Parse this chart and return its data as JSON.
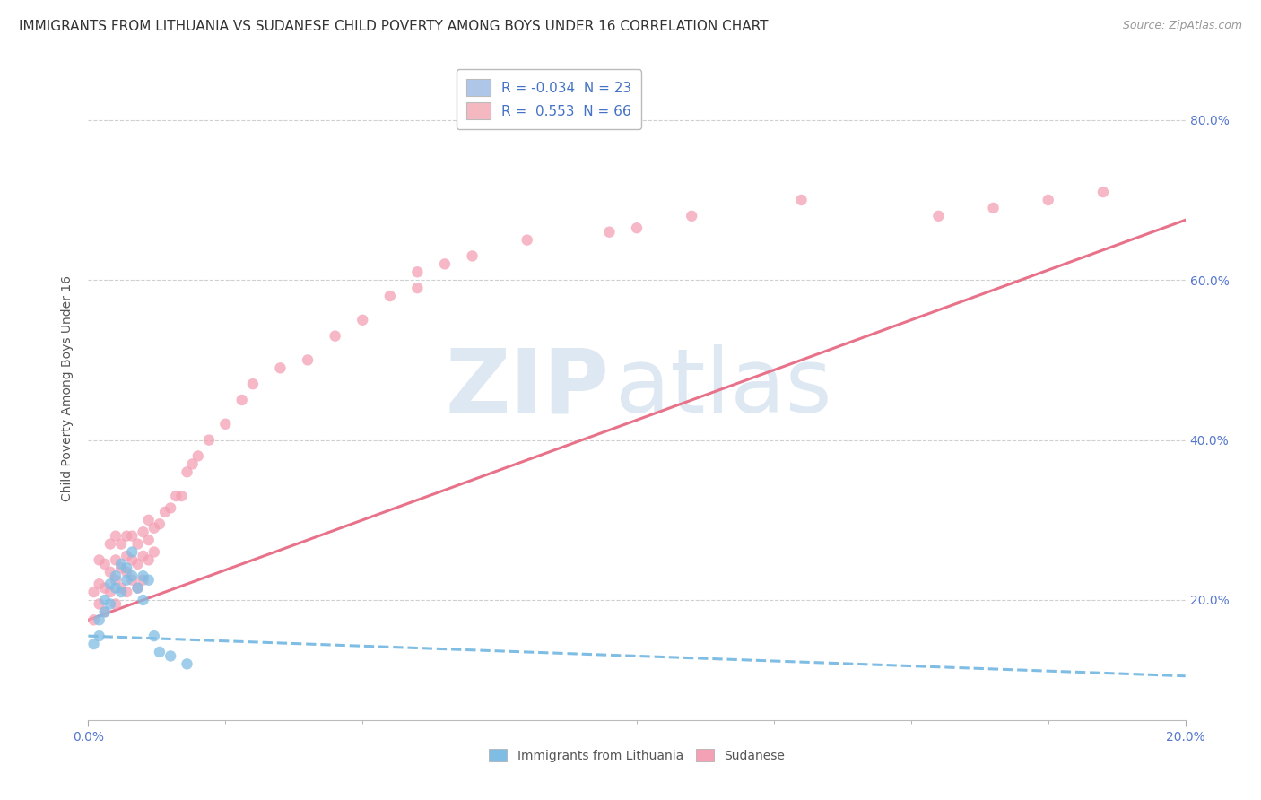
{
  "title": "IMMIGRANTS FROM LITHUANIA VS SUDANESE CHILD POVERTY AMONG BOYS UNDER 16 CORRELATION CHART",
  "source": "Source: ZipAtlas.com",
  "ylabel": "Child Poverty Among Boys Under 16",
  "xlim": [
    0.0,
    0.2
  ],
  "ylim": [
    0.05,
    0.88
  ],
  "legend_items": [
    {
      "label": "R = -0.034  N = 23",
      "color": "#aec6e8"
    },
    {
      "label": "R =  0.553  N = 66",
      "color": "#f4b8c1"
    }
  ],
  "blue_scatter_x": [
    0.001,
    0.002,
    0.002,
    0.003,
    0.003,
    0.004,
    0.004,
    0.005,
    0.005,
    0.006,
    0.006,
    0.007,
    0.007,
    0.008,
    0.008,
    0.009,
    0.01,
    0.01,
    0.011,
    0.012,
    0.013,
    0.015,
    0.018
  ],
  "blue_scatter_y": [
    0.145,
    0.175,
    0.155,
    0.2,
    0.185,
    0.22,
    0.195,
    0.215,
    0.23,
    0.21,
    0.245,
    0.225,
    0.24,
    0.23,
    0.26,
    0.215,
    0.2,
    0.23,
    0.225,
    0.155,
    0.135,
    0.13,
    0.12
  ],
  "pink_scatter_x": [
    0.001,
    0.001,
    0.002,
    0.002,
    0.002,
    0.003,
    0.003,
    0.003,
    0.004,
    0.004,
    0.004,
    0.005,
    0.005,
    0.005,
    0.005,
    0.006,
    0.006,
    0.006,
    0.007,
    0.007,
    0.007,
    0.007,
    0.008,
    0.008,
    0.008,
    0.009,
    0.009,
    0.009,
    0.01,
    0.01,
    0.01,
    0.011,
    0.011,
    0.011,
    0.012,
    0.012,
    0.013,
    0.014,
    0.015,
    0.016,
    0.017,
    0.018,
    0.019,
    0.02,
    0.022,
    0.025,
    0.028,
    0.03,
    0.035,
    0.04,
    0.045,
    0.05,
    0.055,
    0.06,
    0.06,
    0.065,
    0.07,
    0.08,
    0.095,
    0.1,
    0.11,
    0.13,
    0.155,
    0.165,
    0.175,
    0.185
  ],
  "pink_scatter_y": [
    0.175,
    0.21,
    0.195,
    0.22,
    0.25,
    0.185,
    0.215,
    0.245,
    0.21,
    0.235,
    0.27,
    0.195,
    0.225,
    0.25,
    0.28,
    0.215,
    0.24,
    0.27,
    0.21,
    0.235,
    0.255,
    0.28,
    0.225,
    0.25,
    0.28,
    0.215,
    0.245,
    0.27,
    0.225,
    0.255,
    0.285,
    0.25,
    0.275,
    0.3,
    0.26,
    0.29,
    0.295,
    0.31,
    0.315,
    0.33,
    0.33,
    0.36,
    0.37,
    0.38,
    0.4,
    0.42,
    0.45,
    0.47,
    0.49,
    0.5,
    0.53,
    0.55,
    0.58,
    0.59,
    0.61,
    0.62,
    0.63,
    0.65,
    0.66,
    0.665,
    0.68,
    0.7,
    0.68,
    0.69,
    0.7,
    0.71
  ],
  "blue_line_x": [
    0.0,
    0.2
  ],
  "blue_line_y": [
    0.155,
    0.105
  ],
  "pink_line_x": [
    0.0,
    0.2
  ],
  "pink_line_y": [
    0.175,
    0.675
  ],
  "scatter_size": 80,
  "blue_color": "#7fbde4",
  "pink_color": "#f4a0b5",
  "blue_line_color": "#7fbde4",
  "pink_line_color": "#e8728a",
  "watermark_zip": "ZIP",
  "watermark_atlas": "atlas",
  "background_color": "#ffffff",
  "grid_color": "#d0d0d0",
  "title_fontsize": 11,
  "axis_label_fontsize": 10,
  "tick_fontsize": 10,
  "tick_color": "#5577cc"
}
